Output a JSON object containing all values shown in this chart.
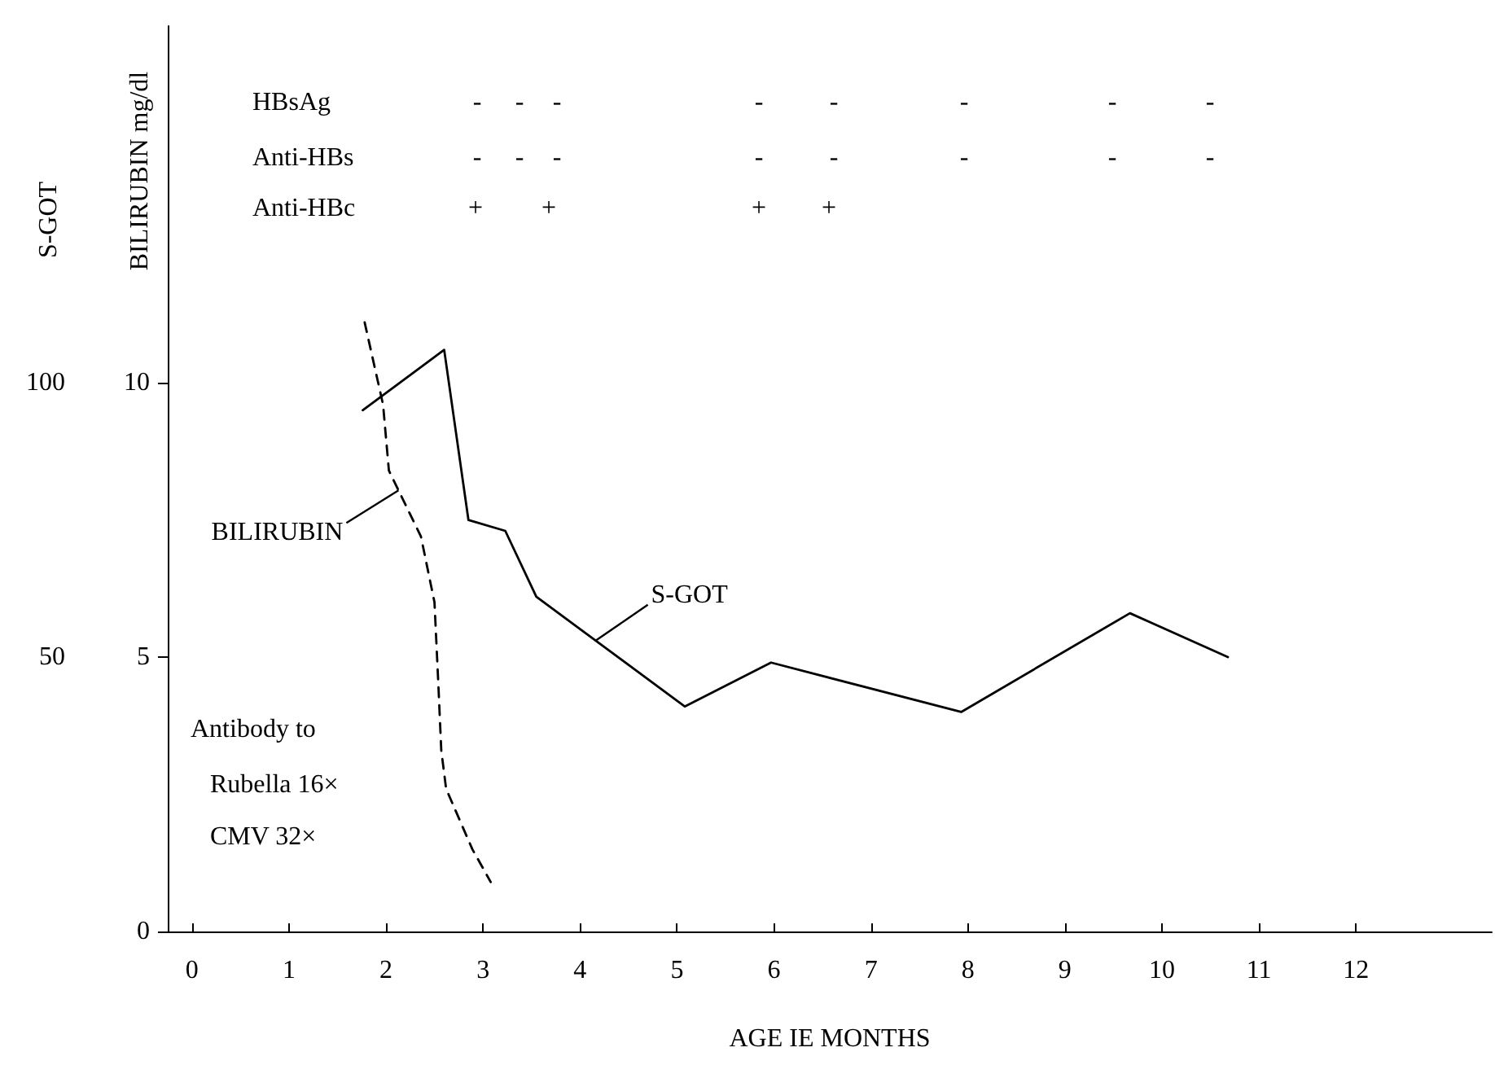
{
  "chart_data": {
    "type": "line",
    "xlabel": "AGE IE MONTHS",
    "ylabel": "S-GOT",
    "y2label": "BILIRUBIN mg/dl",
    "xlim": [
      -0.25,
      13.4
    ],
    "xticks": [
      0,
      1,
      2,
      3,
      4,
      5,
      6,
      7,
      8,
      9,
      10,
      11,
      12
    ],
    "ylim": [
      0,
      165
    ],
    "yticks": [
      50,
      100
    ],
    "y2lim": [
      0,
      16.5
    ],
    "y2ticks": [
      0,
      5,
      10
    ],
    "series": [
      {
        "name": "S-GOT",
        "color": "#000000",
        "line_style": "solid",
        "x": [
          1.76,
          2.6,
          2.85,
          3.23,
          3.55,
          5.08,
          5.97,
          7.93,
          9.67,
          10.68
        ],
        "values": [
          95,
          106,
          75,
          73,
          61,
          41,
          49,
          40,
          58,
          50
        ]
      },
      {
        "name": "BILIRUBIN",
        "color": "#000000",
        "line_style": "dashed",
        "axis": "y2",
        "x": [
          1.78,
          1.97,
          2.03,
          2.36,
          2.5,
          2.54,
          2.57,
          2.62,
          2.89,
          3.08
        ],
        "values": [
          11.1,
          9.6,
          8.4,
          7.2,
          6.0,
          4.5,
          3.3,
          2.6,
          1.5,
          0.9
        ]
      }
    ],
    "marker": "none",
    "grid": false,
    "legend": false,
    "annotations": [
      "HBsAg",
      "Anti-HBs",
      "Anti-HBc",
      "-",
      "-",
      "-",
      "-",
      "-",
      "-",
      "-",
      "-",
      "-",
      "-",
      "-",
      "-",
      "-",
      "-",
      "-",
      "-",
      "+",
      "+",
      "+",
      "+",
      "Antibody to",
      "Rubella 16×",
      "CMV 32×"
    ]
  }
}
